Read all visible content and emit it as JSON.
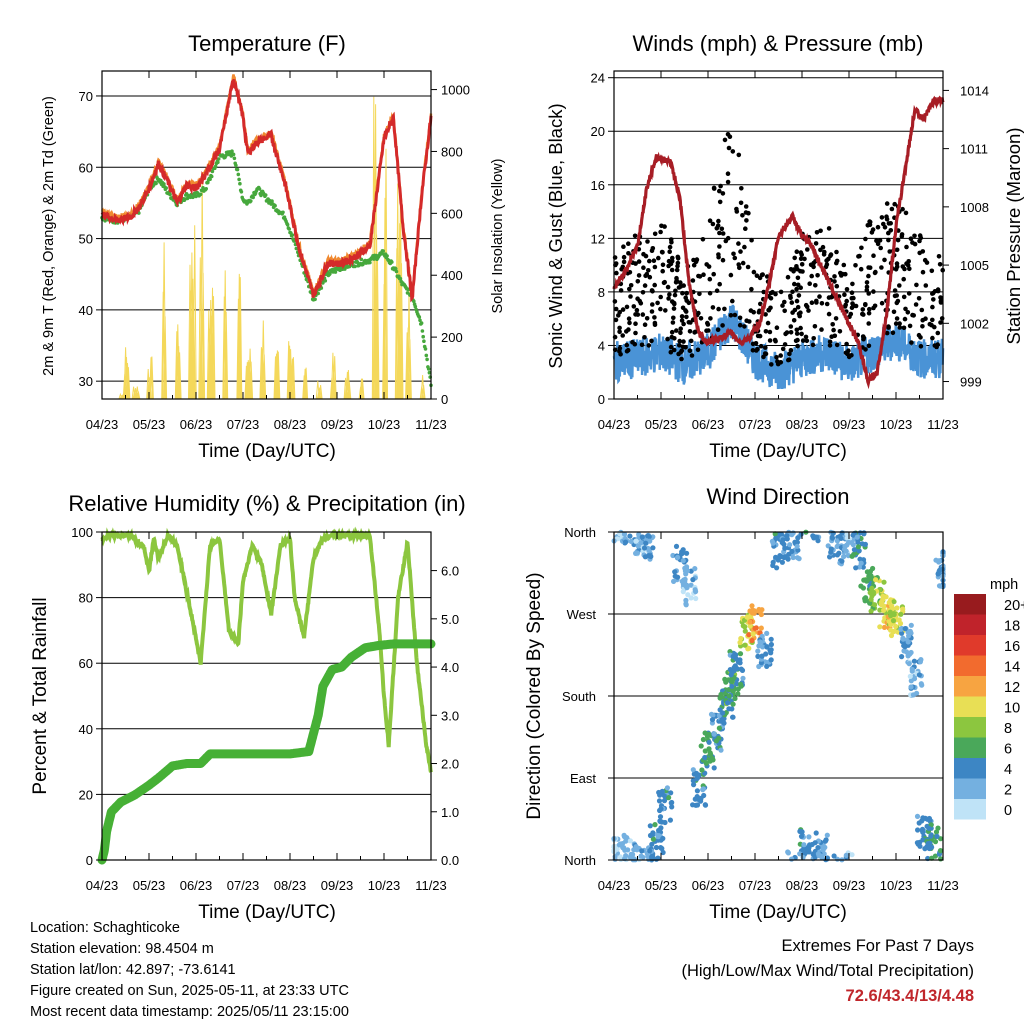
{
  "panels": {
    "temperature": {
      "title": "Temperature (F)",
      "xlabel": "Time (Day/UTC)",
      "ylabel_left": "2m & 9m T (Red, Orange) & 2m Td (Green)",
      "ylabel_right": "Solar Insolation (Yellow)"
    },
    "winds": {
      "title": "Winds (mph) & Pressure (mb)",
      "xlabel": "Time (Day/UTC)",
      "ylabel_left": "Sonic Wind & Gust (Blue, Black)",
      "ylabel_right": "Station Pressure (Maroon)"
    },
    "humidity": {
      "title": "Relative Humidity (%) & Precipitation (in)",
      "xlabel": "Time (Day/UTC)",
      "ylabel_left": "Percent & Total Rainfall"
    },
    "direction": {
      "title": "Wind Direction",
      "xlabel": "Time (Day/UTC)",
      "ylabel_left": "Direction (Colored By Speed)",
      "colorbar_title": "mph",
      "colorbar_labels": [
        "20+",
        "18",
        "16",
        "14",
        "12",
        "10",
        "8",
        "6",
        "4",
        "2",
        "0"
      ],
      "colorbar_colors": [
        "#981b1e",
        "#c0232b",
        "#e03a2b",
        "#f26b2e",
        "#f7a441",
        "#e8df55",
        "#8cc63f",
        "#4aa85a",
        "#3d86c4",
        "#74b0e0",
        "#bfe3f7"
      ]
    }
  },
  "info": {
    "location": "Location: Schaghticoke",
    "elevation": "Station elevation: 98.4504 m",
    "latlon": "Station lat/lon: 42.897; -73.6141",
    "created": "Figure created on Sun, 2025-05-11, at 23:33 UTC",
    "recent": "Most recent data timestamp: 2025/05/11 23:15:00"
  },
  "extremes": {
    "line1": "Extremes For Past 7 Days",
    "line2": "(High/Low/Max Wind/Total Precipitation)",
    "values": "72.6/43.4/13/4.48"
  },
  "chart_data": [
    {
      "type": "line",
      "title": "Temperature (F)",
      "xlabel": "Time (Day/UTC)",
      "ylabel": "2m & 9m T (Red, Orange) & 2m Td (Green)",
      "y2label": "Solar Insolation (Yellow)",
      "x_ticks": [
        "04/23",
        "05/23",
        "06/23",
        "07/23",
        "08/23",
        "09/23",
        "10/23",
        "11/23"
      ],
      "y_ticks": [
        30,
        40,
        50,
        60,
        70
      ],
      "y2_ticks": [
        0,
        200,
        400,
        600,
        800,
        1000
      ],
      "ylim": [
        27.5,
        73.5
      ],
      "y2lim": [
        0,
        1060
      ],
      "colors": {
        "temp_2m": "#d42a2a",
        "temp_9m": "#f08a30",
        "dewpoint": "#46a83c",
        "solar": "#f4d85a"
      },
      "series": [
        {
          "key": "temp_2m",
          "x": [
            0,
            0.3,
            0.6,
            0.8,
            1.0,
            1.2,
            1.4,
            1.6,
            1.8,
            2.0,
            2.2,
            2.5,
            2.8,
            3.0,
            3.1,
            3.3,
            3.6,
            3.9,
            4.2,
            4.5,
            4.8,
            5.1,
            5.4,
            5.7,
            6.0,
            6.2,
            6.4,
            6.6,
            6.8,
            7.0
          ],
          "y": [
            53.5,
            52.5,
            53,
            54.5,
            57,
            60.5,
            58,
            55,
            57.5,
            57,
            59,
            62.5,
            72.5,
            67,
            62,
            63.5,
            64.5,
            57.5,
            48.5,
            42,
            46.5,
            46.5,
            47.5,
            49,
            64,
            67,
            52,
            41.5,
            56,
            67
          ]
        },
        {
          "key": "dewpoint",
          "x": [
            0,
            0.3,
            0.6,
            0.8,
            1.0,
            1.2,
            1.4,
            1.6,
            1.8,
            2.0,
            2.2,
            2.5,
            2.8,
            3.0,
            3.1,
            3.3,
            3.6,
            3.9,
            4.2,
            4.5,
            4.8,
            5.1,
            5.4,
            5.7,
            6.0,
            6.2,
            6.4,
            6.6,
            6.8,
            7.0
          ],
          "y": [
            53,
            52.5,
            53,
            54,
            57,
            58.5,
            56.5,
            55,
            56,
            56,
            57,
            61.5,
            62,
            55.5,
            55,
            57,
            55,
            53,
            47.5,
            41.5,
            45,
            46,
            46.5,
            47,
            48,
            46,
            43.5,
            42,
            38,
            29.5
          ]
        },
        {
          "key": "solar",
          "x": [
            0.4,
            0.5,
            0.7,
            1.0,
            1.3,
            1.6,
            1.9,
            2.1,
            2.3,
            2.6,
            2.9,
            3.1,
            3.4,
            3.7,
            4.0,
            4.3,
            4.6,
            4.9,
            5.2,
            5.5,
            5.8,
            6.0,
            6.3,
            6.5,
            6.8
          ],
          "y": [
            20,
            180,
            50,
            140,
            520,
            300,
            650,
            750,
            420,
            620,
            500,
            180,
            300,
            160,
            220,
            120,
            60,
            150,
            100,
            80,
            1060,
            900,
            1000,
            400,
            100
          ]
        }
      ]
    },
    {
      "type": "line",
      "title": "Winds (mph) & Pressure (mb)",
      "xlabel": "Time (Day/UTC)",
      "ylabel": "Sonic Wind & Gust (Blue, Black)",
      "y2label": "Station Pressure (Maroon)",
      "x_ticks": [
        "04/23",
        "05/23",
        "06/23",
        "07/23",
        "08/23",
        "09/23",
        "10/23",
        "11/23"
      ],
      "y_ticks": [
        0,
        4,
        8,
        12,
        16,
        20,
        24
      ],
      "y2_ticks": [
        999,
        1002,
        1005,
        1008,
        1011,
        1014
      ],
      "ylim": [
        0,
        24.5
      ],
      "y2lim": [
        998.1,
        1015.0
      ],
      "colors": {
        "wind": "#4a93d6",
        "gust": "#000000",
        "pressure": "#a71d25"
      },
      "series": [
        {
          "key": "pressure",
          "x": [
            0,
            0.2,
            0.5,
            0.7,
            0.9,
            1.2,
            1.4,
            1.6,
            1.8,
            2.0,
            2.2,
            2.5,
            2.7,
            2.9,
            3.1,
            3.3,
            3.5,
            3.8,
            4.0,
            4.2,
            4.4,
            4.6,
            4.8,
            5.0,
            5.2,
            5.4,
            5.6,
            5.8,
            6.0,
            6.2,
            6.4,
            6.6,
            6.8,
            7.0
          ],
          "y": [
            1003.8,
            1004.5,
            1006,
            1009,
            1010.6,
            1010.3,
            1008.5,
            1004,
            1001.5,
            1001,
            1001.2,
            1001.5,
            1001,
            1001.3,
            1002,
            1004,
            1006.5,
            1007.5,
            1006.5,
            1006,
            1005,
            1004,
            1003,
            1002,
            1001,
            999,
            999.5,
            1002.5,
            1007,
            1010,
            1013,
            1012.5,
            1013.5,
            1013.5
          ]
        },
        {
          "key": "gust_trend",
          "x": [
            0,
            0.5,
            1.0,
            1.5,
            2.0,
            2.5,
            3.0,
            3.5,
            4.0,
            4.5,
            5.0,
            5.5,
            6.0,
            6.5,
            7.0
          ],
          "y": [
            7,
            8,
            9,
            6,
            9,
            14,
            7,
            5,
            8,
            9,
            6,
            9,
            10,
            8,
            7
          ]
        },
        {
          "key": "wind_trend",
          "x": [
            0,
            0.5,
            1.0,
            1.5,
            2.0,
            2.5,
            3.0,
            3.5,
            4.0,
            4.5,
            5.0,
            5.5,
            6.0,
            6.5,
            7.0
          ],
          "y": [
            2.8,
            3,
            3.5,
            2.5,
            3.5,
            6,
            3,
            2,
            3,
            3.5,
            2.5,
            3.5,
            4.5,
            3,
            3
          ]
        }
      ]
    },
    {
      "type": "line",
      "title": "Relative Humidity (%) & Precipitation (in)",
      "xlabel": "Time (Day/UTC)",
      "ylabel": "Percent & Total Rainfall",
      "x_ticks": [
        "04/23",
        "05/23",
        "06/23",
        "07/23",
        "08/23",
        "09/23",
        "10/23",
        "11/23"
      ],
      "y_ticks": [
        0,
        20,
        40,
        60,
        80,
        100
      ],
      "y2_ticks": [
        "0.0",
        "1.0",
        "2.0",
        "3.0",
        "4.0",
        "5.0",
        "6.0"
      ],
      "ylim": [
        0,
        100
      ],
      "y2lim": [
        0,
        6.8
      ],
      "colors": {
        "rh": "#8cc63f",
        "precip": "#46b035"
      },
      "series": [
        {
          "key": "rh",
          "x": [
            0,
            0.2,
            0.6,
            0.9,
            1.0,
            1.1,
            1.2,
            1.4,
            1.6,
            1.9,
            2.1,
            2.3,
            2.5,
            2.7,
            2.9,
            3.0,
            3.2,
            3.4,
            3.6,
            3.8,
            4.0,
            4.1,
            4.3,
            4.5,
            4.7,
            4.9,
            5.1,
            5.3,
            5.5,
            5.7,
            5.9,
            6.0,
            6.1,
            6.3,
            6.5,
            6.7,
            6.9,
            7.0
          ],
          "y": [
            98,
            99,
            99,
            95,
            88,
            98,
            92,
            99,
            96,
            75,
            60,
            96,
            98,
            70,
            66,
            85,
            96,
            90,
            75,
            96,
            98,
            80,
            68,
            92,
            98,
            99,
            99,
            99,
            99,
            99,
            70,
            50,
            35,
            80,
            97,
            60,
            35,
            27
          ]
        },
        {
          "key": "precip_in",
          "x": [
            0,
            0.05,
            0.1,
            0.2,
            0.4,
            0.7,
            1.0,
            1.2,
            1.5,
            1.8,
            2.1,
            2.3,
            3.0,
            3.5,
            4.0,
            4.4,
            4.6,
            4.7,
            4.9,
            5.1,
            5.3,
            5.6,
            5.9,
            6.2,
            6.6,
            7.0
          ],
          "y": [
            0,
            0.2,
            0.6,
            1.0,
            1.2,
            1.35,
            1.55,
            1.7,
            1.95,
            2.0,
            2.0,
            2.2,
            2.2,
            2.2,
            2.2,
            2.25,
            3.0,
            3.6,
            3.95,
            4.0,
            4.2,
            4.4,
            4.45,
            4.48,
            4.48,
            4.48
          ]
        }
      ]
    },
    {
      "type": "scatter",
      "title": "Wind Direction",
      "xlabel": "Time (Day/UTC)",
      "ylabel": "Direction (Colored By Speed)",
      "x_ticks": [
        "04/23",
        "05/23",
        "06/23",
        "07/23",
        "08/23",
        "09/23",
        "10/23",
        "11/23"
      ],
      "y_ticks": [
        "North",
        "East",
        "South",
        "West",
        "North"
      ],
      "ylim": [
        0,
        360
      ],
      "colorbar": {
        "title": "mph",
        "levels": [
          "0",
          "2",
          "4",
          "6",
          "8",
          "10",
          "12",
          "14",
          "16",
          "18",
          "20+"
        ]
      },
      "series": [
        {
          "name": "",
          "x": [
            0.1,
            0.3,
            0.6,
            0.7,
            0.9,
            1.1,
            1.4,
            1.6,
            1.8,
            2.0,
            2.2,
            2.4,
            2.5,
            2.6,
            2.8,
            3.0,
            3.2,
            3.5,
            3.8,
            4.1,
            4.4,
            4.7,
            5.0,
            5.2,
            5.4,
            5.6,
            5.8,
            6.0,
            6.2,
            6.4,
            6.6,
            6.8,
            7.0
          ],
          "y": [
            10,
            5,
            355,
            350,
            20,
            60,
            325,
            300,
            80,
            120,
            140,
            170,
            190,
            210,
            250,
            260,
            230,
            340,
            350,
            15,
            10,
            345,
            350,
            340,
            300,
            290,
            270,
            265,
            240,
            200,
            30,
            20,
            320
          ],
          "speed_mph": [
            1,
            2,
            2,
            3,
            4,
            4,
            3,
            2,
            4,
            5,
            4,
            5,
            6,
            4,
            9,
            12,
            3,
            4,
            3,
            4,
            3,
            3,
            2,
            4,
            6,
            8,
            10,
            9,
            3,
            2,
            4,
            5,
            3
          ]
        }
      ]
    }
  ]
}
